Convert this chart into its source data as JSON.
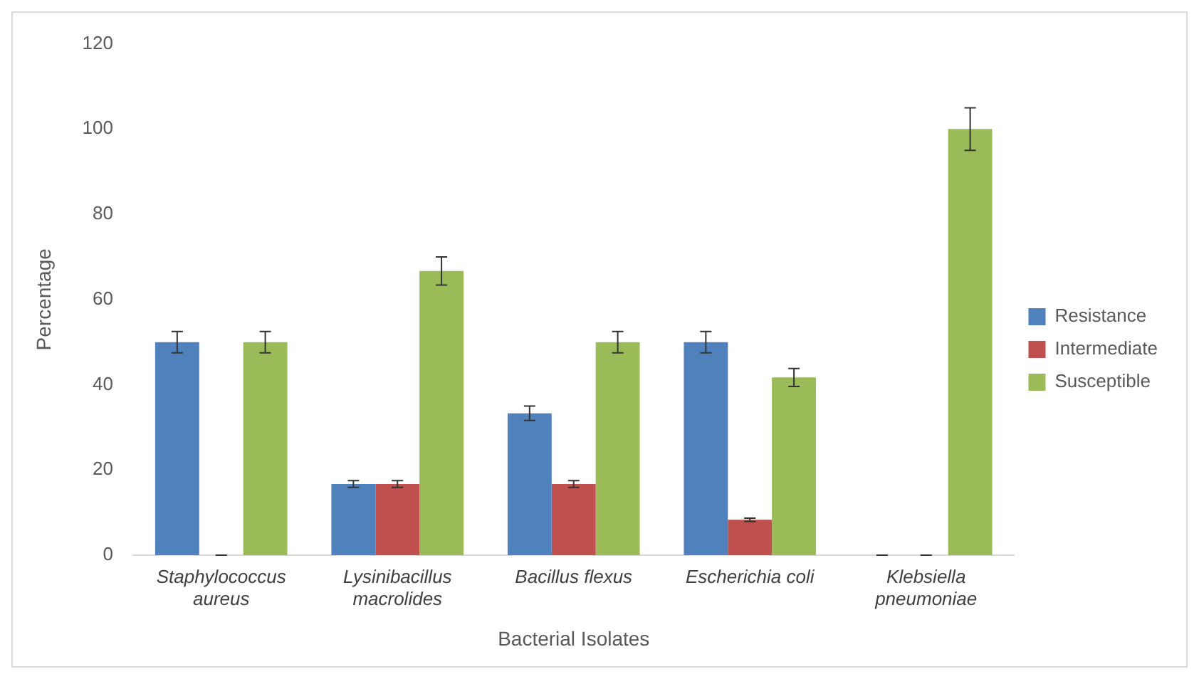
{
  "chart_data": {
    "type": "bar",
    "xlabel": "Bacterial Isolates",
    "ylabel": "Percentage",
    "categories": [
      "Staphylococcus aureus",
      "Lysinibacillus macrolides",
      "Bacillus flexus",
      "Escherichia coli",
      "Klebsiella pneumoniae"
    ],
    "series": [
      {
        "name": "Resistance",
        "color": "#4f81bd",
        "values": [
          50,
          16.7,
          33.3,
          50,
          0
        ],
        "errors": [
          2.5,
          0.8,
          1.7,
          2.5,
          0
        ]
      },
      {
        "name": "Intermediate",
        "color": "#c0504d",
        "values": [
          0,
          16.7,
          16.7,
          8.3,
          0
        ],
        "errors": [
          0,
          0.8,
          0.8,
          0.4,
          0
        ]
      },
      {
        "name": "Susceptible",
        "color": "#9bbb59",
        "values": [
          50,
          66.7,
          50,
          41.7,
          100
        ],
        "errors": [
          2.5,
          3.3,
          2.5,
          2.1,
          5
        ]
      }
    ],
    "ylim": [
      0,
      120
    ],
    "yticks": [
      0,
      20,
      40,
      60,
      80,
      100,
      120
    ],
    "grid": false,
    "legend": "right"
  }
}
